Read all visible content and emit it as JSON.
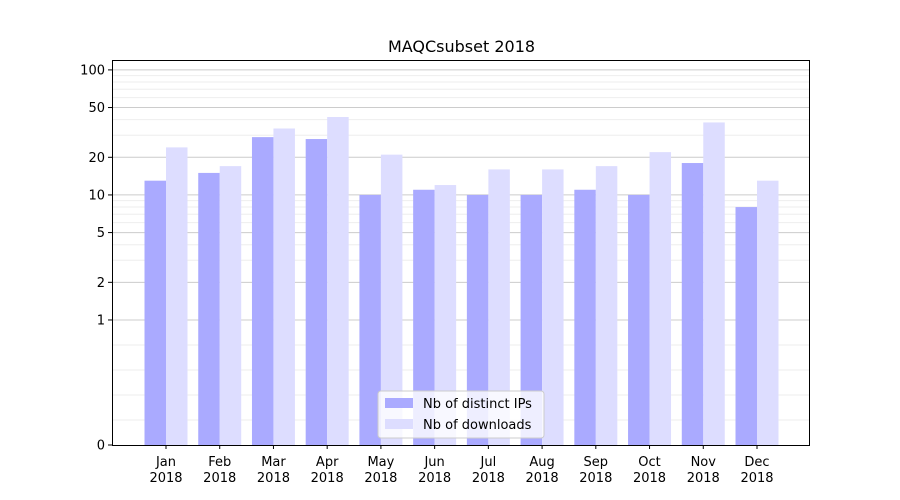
{
  "chart_data": {
    "type": "bar",
    "title": "MAQCsubset 2018",
    "xlabel": "",
    "ylabel": "",
    "yscale": "symlog",
    "ylim": [
      0,
      120
    ],
    "yticks": [
      0,
      1,
      2,
      5,
      10,
      20,
      50,
      100
    ],
    "ytick_labels": [
      "0",
      "1",
      "2",
      "5",
      "10",
      "20",
      "50",
      "100"
    ],
    "grid": true,
    "legend_position": "bottom-center",
    "categories": [
      {
        "month": "Jan",
        "year": "2018"
      },
      {
        "month": "Feb",
        "year": "2018"
      },
      {
        "month": "Mar",
        "year": "2018"
      },
      {
        "month": "Apr",
        "year": "2018"
      },
      {
        "month": "May",
        "year": "2018"
      },
      {
        "month": "Jun",
        "year": "2018"
      },
      {
        "month": "Jul",
        "year": "2018"
      },
      {
        "month": "Aug",
        "year": "2018"
      },
      {
        "month": "Sep",
        "year": "2018"
      },
      {
        "month": "Oct",
        "year": "2018"
      },
      {
        "month": "Nov",
        "year": "2018"
      },
      {
        "month": "Dec",
        "year": "2018"
      }
    ],
    "series": [
      {
        "name": "Nb of distinct IPs",
        "color": "#aaaaff",
        "values": [
          13,
          15,
          29,
          28,
          10,
          11,
          10,
          10,
          11,
          10,
          18,
          8
        ]
      },
      {
        "name": "Nb of downloads",
        "color": "#ddddff",
        "values": [
          24,
          17,
          34,
          42,
          21,
          12,
          16,
          16,
          17,
          22,
          38,
          13
        ]
      }
    ]
  }
}
